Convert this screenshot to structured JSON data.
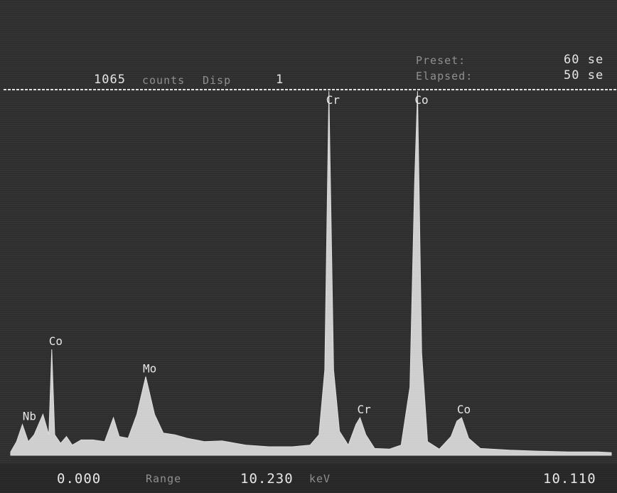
{
  "header": {
    "counts": "1065",
    "count_label": "counts",
    "cursor_label": "Disp",
    "display_number": "1",
    "preset_label": "Preset:",
    "preset_value": "60 se",
    "elapsed_label": "Elapsed:",
    "elapsed_value": "50 se"
  },
  "footer": {
    "start_energy": "0.000",
    "range_label": "Range",
    "range_value": "10.230",
    "range_unit": "keV",
    "cursor_energy": "10.110"
  },
  "colors": {
    "background": "#2e2e2e",
    "trace": "#dcdcdc",
    "text": "#e6e6e6"
  },
  "chart_data": {
    "type": "area",
    "title": "",
    "xlabel": "",
    "ylabel": "",
    "xlim": [
      0,
      10.23
    ],
    "ylim": [
      0,
      1065
    ],
    "grid": false,
    "peaks": [
      {
        "label": "Nb",
        "x": 0.25,
        "y": 90
      },
      {
        "label": "Co",
        "x": 0.7,
        "y": 310
      },
      {
        "label": "Mo",
        "x": 2.3,
        "y": 230
      },
      {
        "label": "Cr",
        "x": 5.42,
        "y": 1065
      },
      {
        "label": "Cr",
        "x": 5.95,
        "y": 110
      },
      {
        "label": "Co",
        "x": 6.93,
        "y": 1065
      },
      {
        "label": "Co",
        "x": 7.65,
        "y": 110
      }
    ],
    "series": [
      {
        "x": [
          0.0,
          0.1,
          0.2,
          0.3,
          0.4,
          0.55,
          0.65,
          0.7,
          0.75,
          0.85,
          0.95,
          1.05,
          1.2,
          1.4,
          1.6,
          1.75,
          1.85,
          2.0,
          2.15,
          2.3,
          2.45,
          2.6,
          2.8,
          3.0,
          3.3,
          3.6,
          4.0,
          4.4,
          4.8,
          5.1,
          5.25,
          5.35,
          5.42,
          5.5,
          5.6,
          5.75,
          5.88,
          5.95,
          6.05,
          6.2,
          6.45,
          6.65,
          6.8,
          6.88,
          6.93,
          7.0,
          7.1,
          7.3,
          7.5,
          7.6,
          7.68,
          7.8,
          8.0,
          8.5,
          9.0,
          9.5,
          10.0,
          10.23
        ],
        "y": [
          10,
          40,
          90,
          40,
          60,
          120,
          60,
          310,
          60,
          35,
          55,
          30,
          45,
          45,
          40,
          110,
          55,
          50,
          120,
          230,
          120,
          65,
          60,
          50,
          40,
          42,
          30,
          25,
          25,
          30,
          60,
          250,
          1065,
          250,
          70,
          30,
          90,
          110,
          60,
          20,
          18,
          30,
          200,
          800,
          1065,
          300,
          40,
          18,
          55,
          100,
          110,
          50,
          20,
          15,
          12,
          10,
          10,
          8
        ]
      }
    ]
  }
}
